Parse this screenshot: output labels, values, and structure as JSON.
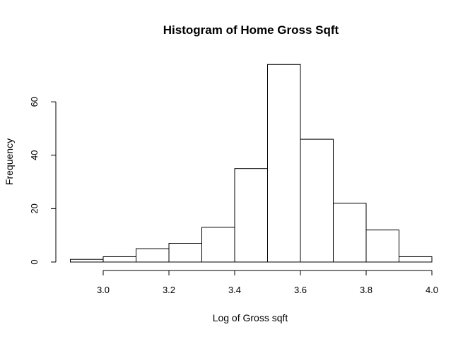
{
  "chart_data": {
    "type": "bar",
    "title": "Histogram of Home Gross Sqft",
    "xlabel": "Log of Gross sqft",
    "ylabel": "Frequency",
    "bin_edges": [
      2.9,
      3.0,
      3.1,
      3.2,
      3.3,
      3.4,
      3.5,
      3.6,
      3.7,
      3.8,
      3.9,
      4.0
    ],
    "values": [
      1,
      2,
      5,
      7,
      13,
      35,
      74,
      46,
      22,
      12,
      2
    ],
    "x_ticks": [
      "3.0",
      "3.2",
      "3.4",
      "3.6",
      "3.8",
      "4.0"
    ],
    "x_tick_values": [
      3.0,
      3.2,
      3.4,
      3.6,
      3.8,
      4.0
    ],
    "y_ticks": [
      "0",
      "20",
      "40",
      "60"
    ],
    "y_tick_values": [
      0,
      20,
      40,
      60
    ],
    "xlim": [
      2.9,
      4.0
    ],
    "ylim": [
      0,
      74
    ],
    "grid": false,
    "bar_color": "#ffffff",
    "edge_color": "#000000"
  }
}
